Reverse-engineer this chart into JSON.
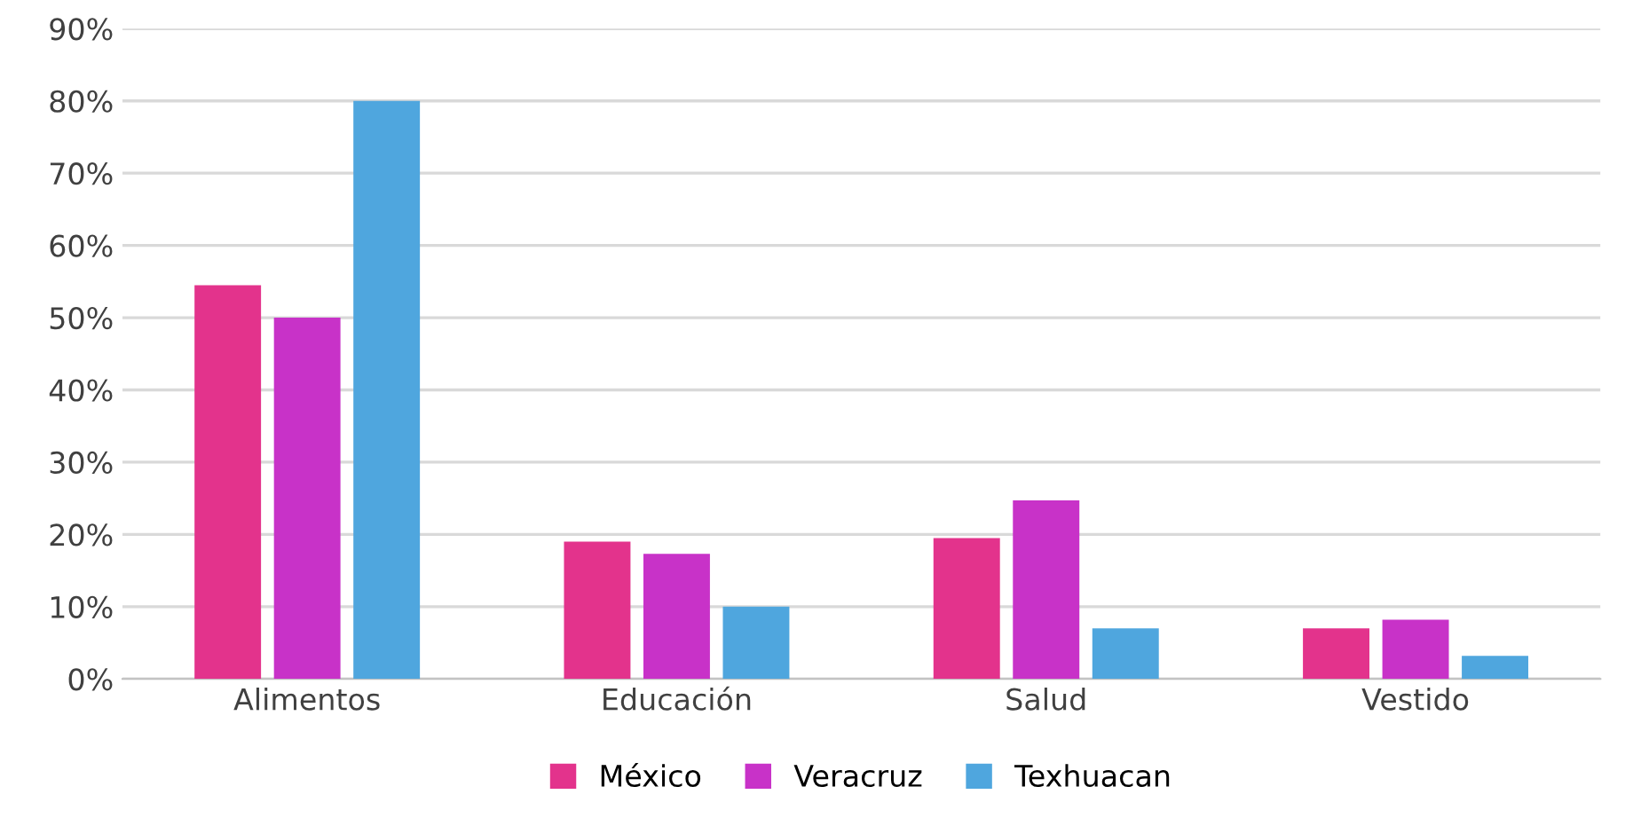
{
  "chart_data": {
    "type": "bar",
    "categories": [
      "Alimentos",
      "Educación",
      "Salud",
      "Vestido"
    ],
    "series": [
      {
        "name": "México",
        "color": "#e3338c",
        "values": [
          54.5,
          19,
          19.5,
          7
        ]
      },
      {
        "name": "Veracruz",
        "color": "#c832c8",
        "values": [
          50,
          17.3,
          24.7,
          8.2
        ]
      },
      {
        "name": "Texhuacan",
        "color": "#4fa6de",
        "values": [
          80,
          10,
          7,
          3.2
        ]
      }
    ],
    "ylim": [
      0,
      90
    ],
    "yticks": [
      {
        "value": 0,
        "label": "0%"
      },
      {
        "value": 10,
        "label": "10%"
      },
      {
        "value": 20,
        "label": "20%"
      },
      {
        "value": 30,
        "label": "30%"
      },
      {
        "value": 40,
        "label": "40%"
      },
      {
        "value": 50,
        "label": "50%"
      },
      {
        "value": 60,
        "label": "60%"
      },
      {
        "value": 70,
        "label": "70%"
      },
      {
        "value": 80,
        "label": "80%"
      },
      {
        "value": 90,
        "label": "90%"
      }
    ],
    "grid": "y",
    "legend": "bottom"
  }
}
